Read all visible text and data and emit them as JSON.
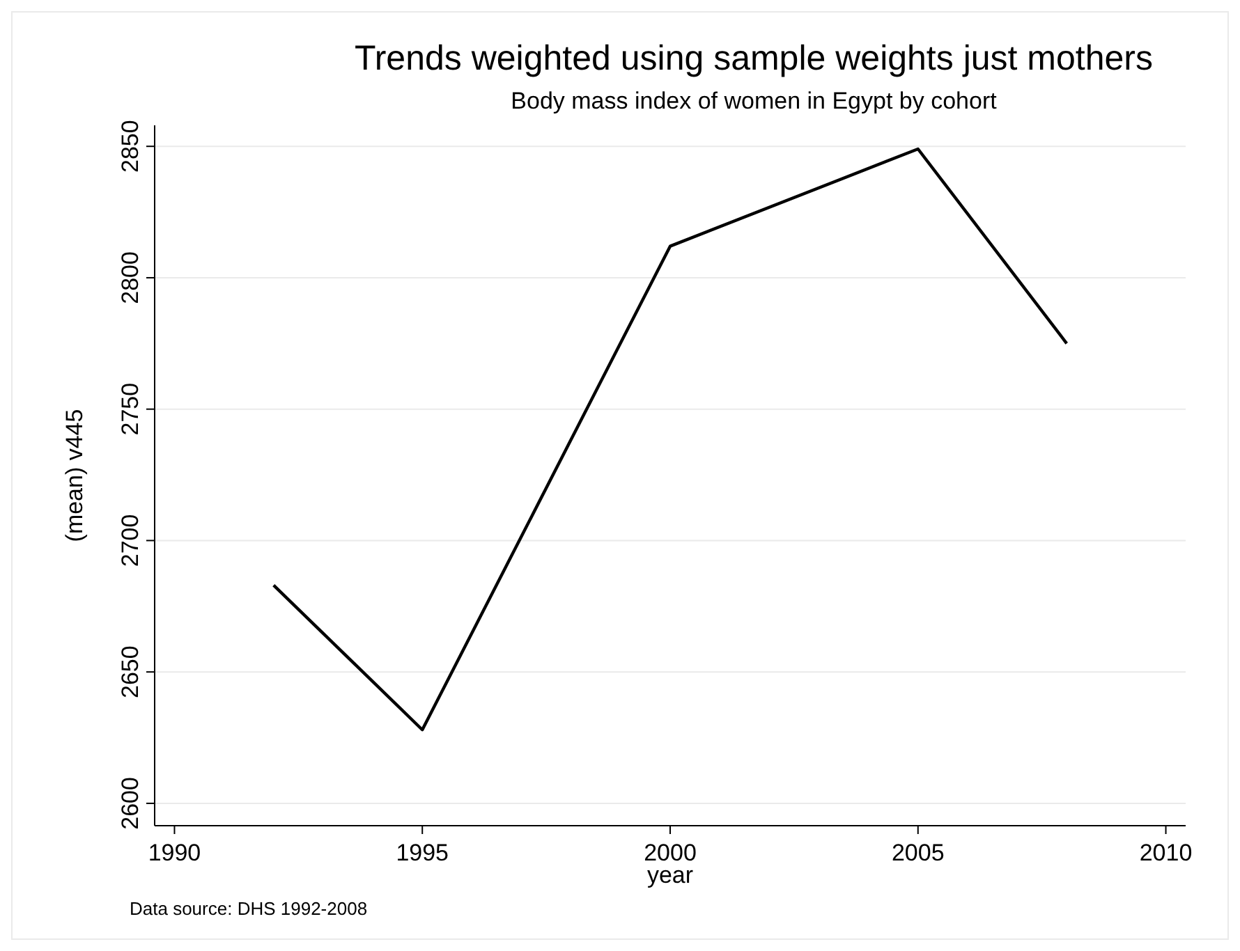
{
  "chart_data": {
    "type": "line",
    "title": "Trends weighted using sample weights just mothers",
    "subtitle": "Body mass index of women in Egypt by cohort",
    "xlabel": "year",
    "ylabel": "(mean) v445",
    "annotations": [
      "Data source: DHS 1992-2008"
    ],
    "x": [
      1992,
      1995,
      2000,
      2005,
      2008
    ],
    "series": [
      {
        "color": "#000000",
        "values": [
          2683,
          2628,
          2812,
          2849,
          2775
        ]
      }
    ],
    "xlim": [
      1989.6,
      2010.4
    ],
    "xticks": [
      1990,
      1995,
      2000,
      2005,
      2010
    ],
    "ylim": [
      2591.5,
      2858
    ],
    "yticks": [
      2600,
      2650,
      2700,
      2750,
      2800,
      2850
    ],
    "grid": "y",
    "marker": "none",
    "line_style": "solid"
  }
}
